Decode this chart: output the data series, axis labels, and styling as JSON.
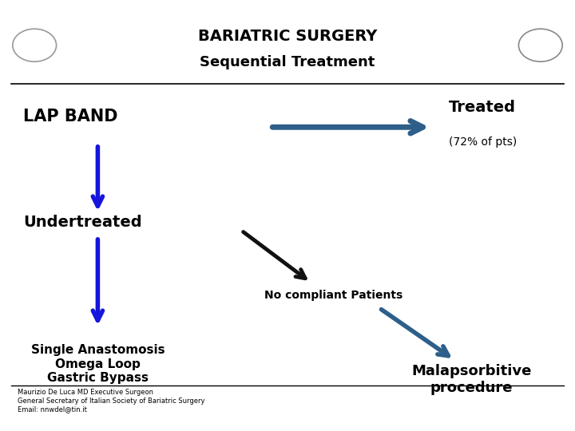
{
  "title_line1": "BARIATRIC SURGERY",
  "title_line2": "Sequential Treatment",
  "lap_band_text": "LAP BAND",
  "treated_text": "Treated",
  "treated_sub": "(72% of pts)",
  "undertreated_text": "Undertreated",
  "no_compliant_text": "No compliant Patients",
  "single_anastomosis_text": "Single Anastomosis\nOmega Loop\nGastric Bypass",
  "malapsorbitive_text": "Malapsorbitive\nprocedure",
  "footer_text": "Maurizio De Luca MD Executive Surgeon\nGeneral Secretary of Italian Society of Bariatric Surgery\nEmail: nnwdel@tin.it",
  "bg_color": "#ffffff",
  "text_color": "#000000",
  "blue_arrow_color": "#1515dd",
  "dark_blue_arrow_color": "#2e5f8a",
  "black_arrow_color": "#111111"
}
